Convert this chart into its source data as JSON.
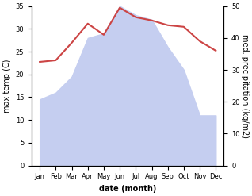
{
  "months": [
    "Jan",
    "Feb",
    "Mar",
    "Apr",
    "May",
    "Jun",
    "Jul",
    "Aug",
    "Sep",
    "Oct",
    "Nov",
    "Dec"
  ],
  "temp": [
    14.5,
    16.0,
    19.5,
    28.0,
    29.0,
    35.0,
    33.0,
    32.0,
    26.0,
    21.0,
    11.0,
    11.0
  ],
  "precip": [
    32.5,
    33.0,
    38.5,
    44.5,
    41.0,
    49.5,
    46.5,
    45.5,
    44.0,
    43.5,
    39.0,
    36.0
  ],
  "precip_color": "#cc4444",
  "fill_color": "#c5cef0",
  "fill_alpha": 1.0,
  "xlabel": "date (month)",
  "ylabel_left": "max temp (C)",
  "ylabel_right": "med. precipitation (kg/m2)",
  "ylim_left": [
    0,
    35
  ],
  "ylim_right": [
    0,
    50
  ],
  "yticks_left": [
    0,
    5,
    10,
    15,
    20,
    25,
    30,
    35
  ],
  "yticks_right": [
    0,
    10,
    20,
    30,
    40,
    50
  ],
  "bg_color": "#ffffff",
  "line_width": 1.5,
  "fontsize_tick": 6,
  "fontsize_label": 7,
  "fontsize_xlabel": 7
}
